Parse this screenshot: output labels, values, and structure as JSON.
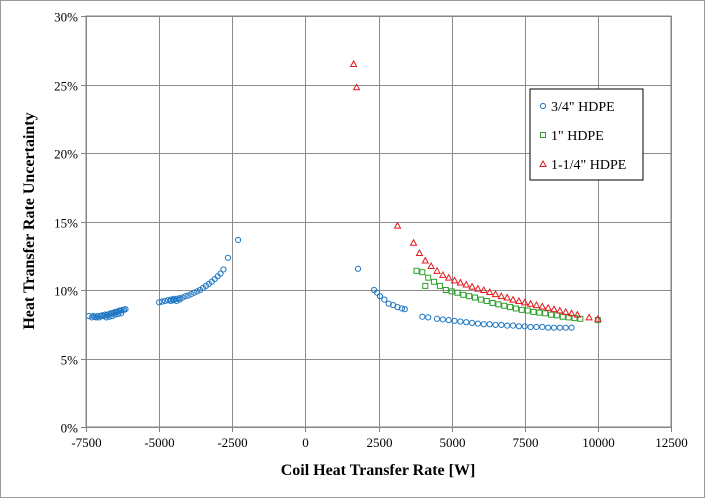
{
  "chart_data": {
    "type": "scatter",
    "title": "",
    "xlabel": "Coil Heat Transfer Rate [W]",
    "ylabel": "Heat Transfer Rate Uncertainty",
    "xlim": [
      -7500,
      12500
    ],
    "ylim": [
      0,
      30
    ],
    "x_ticks": [
      -7500,
      -5000,
      -2500,
      0,
      2500,
      5000,
      7500,
      10000,
      12500
    ],
    "x_tick_labels": [
      "-7500",
      "-5000",
      "-2500",
      "0",
      "2500",
      "5000",
      "7500",
      "10000",
      "12500"
    ],
    "y_ticks": [
      0,
      5,
      10,
      15,
      20,
      25,
      30
    ],
    "y_tick_labels": [
      "0%",
      "5%",
      "10%",
      "15%",
      "20%",
      "25%",
      "30%"
    ],
    "grid": true,
    "legend_position": "top-right",
    "series": [
      {
        "name": "3/4\" HDPE",
        "marker": "circle",
        "color": "#1f77c4",
        "points": [
          [
            -7400,
            8.1
          ],
          [
            -7300,
            8.0
          ],
          [
            -7250,
            8.1
          ],
          [
            -7200,
            8.05
          ],
          [
            -7150,
            8.0
          ],
          [
            -7100,
            8.1
          ],
          [
            -7050,
            8.0
          ],
          [
            -7000,
            8.1
          ],
          [
            -6950,
            8.15
          ],
          [
            -6900,
            8.1
          ],
          [
            -6850,
            8.2
          ],
          [
            -6800,
            8.15
          ],
          [
            -6750,
            8.2
          ],
          [
            -6700,
            8.25
          ],
          [
            -6650,
            8.3
          ],
          [
            -6600,
            8.3
          ],
          [
            -6550,
            8.35
          ],
          [
            -6500,
            8.4
          ],
          [
            -6450,
            8.4
          ],
          [
            -6400,
            8.45
          ],
          [
            -6350,
            8.5
          ],
          [
            -6300,
            8.5
          ],
          [
            -6250,
            8.55
          ],
          [
            -6200,
            8.55
          ],
          [
            -6150,
            8.6
          ],
          [
            -6800,
            8.0
          ],
          [
            -6700,
            8.05
          ],
          [
            -6600,
            8.1
          ],
          [
            -6500,
            8.2
          ],
          [
            -6400,
            8.25
          ],
          [
            -6300,
            8.3
          ],
          [
            -5000,
            9.1
          ],
          [
            -4900,
            9.15
          ],
          [
            -4800,
            9.2
          ],
          [
            -4700,
            9.25
          ],
          [
            -4600,
            9.3
          ],
          [
            -4500,
            9.35
          ],
          [
            -4400,
            9.35
          ],
          [
            -4300,
            9.4
          ],
          [
            -4200,
            9.45
          ],
          [
            -4100,
            9.55
          ],
          [
            -4000,
            9.6
          ],
          [
            -3900,
            9.7
          ],
          [
            -3800,
            9.8
          ],
          [
            -3700,
            9.9
          ],
          [
            -3600,
            10.0
          ],
          [
            -3500,
            10.15
          ],
          [
            -3400,
            10.3
          ],
          [
            -3300,
            10.45
          ],
          [
            -3200,
            10.6
          ],
          [
            -3100,
            10.8
          ],
          [
            -3000,
            11.0
          ],
          [
            -2900,
            11.2
          ],
          [
            -2800,
            11.5
          ],
          [
            -4600,
            9.2
          ],
          [
            -4500,
            9.25
          ],
          [
            -4400,
            9.2
          ],
          [
            -4300,
            9.3
          ],
          [
            -2650,
            12.35
          ],
          [
            -2300,
            13.65
          ],
          [
            1800,
            11.55
          ],
          [
            2350,
            10.0
          ],
          [
            2450,
            9.8
          ],
          [
            2550,
            9.55
          ],
          [
            2700,
            9.3
          ],
          [
            2850,
            9.0
          ],
          [
            3000,
            8.9
          ],
          [
            3150,
            8.75
          ],
          [
            3300,
            8.65
          ],
          [
            3400,
            8.6
          ],
          [
            4000,
            8.05
          ],
          [
            4200,
            8.0
          ],
          [
            4500,
            7.9
          ],
          [
            4700,
            7.85
          ],
          [
            4900,
            7.8
          ],
          [
            5100,
            7.75
          ],
          [
            5300,
            7.7
          ],
          [
            5500,
            7.65
          ],
          [
            5700,
            7.6
          ],
          [
            5900,
            7.55
          ],
          [
            6100,
            7.5
          ],
          [
            6300,
            7.5
          ],
          [
            6500,
            7.45
          ],
          [
            6700,
            7.45
          ],
          [
            6900,
            7.4
          ],
          [
            7100,
            7.4
          ],
          [
            7300,
            7.35
          ],
          [
            7500,
            7.35
          ],
          [
            7700,
            7.3
          ],
          [
            7900,
            7.3
          ],
          [
            8100,
            7.3
          ],
          [
            8300,
            7.25
          ],
          [
            8500,
            7.25
          ],
          [
            8700,
            7.25
          ],
          [
            8900,
            7.25
          ],
          [
            9100,
            7.25
          ]
        ]
      },
      {
        "name": "1\" HDPE",
        "marker": "square",
        "color": "#2ca02c",
        "points": [
          [
            3800,
            11.4
          ],
          [
            4000,
            11.3
          ],
          [
            4200,
            10.9
          ],
          [
            4100,
            10.3
          ],
          [
            4400,
            10.6
          ],
          [
            4600,
            10.3
          ],
          [
            4800,
            10.0
          ],
          [
            5000,
            9.9
          ],
          [
            5200,
            9.8
          ],
          [
            5400,
            9.65
          ],
          [
            5600,
            9.55
          ],
          [
            5800,
            9.45
          ],
          [
            6000,
            9.3
          ],
          [
            6200,
            9.2
          ],
          [
            6400,
            9.05
          ],
          [
            6600,
            8.95
          ],
          [
            6800,
            8.85
          ],
          [
            7000,
            8.75
          ],
          [
            7200,
            8.65
          ],
          [
            7400,
            8.55
          ],
          [
            7600,
            8.5
          ],
          [
            7800,
            8.4
          ],
          [
            8000,
            8.35
          ],
          [
            8200,
            8.3
          ],
          [
            8400,
            8.2
          ],
          [
            8600,
            8.15
          ],
          [
            8800,
            8.05
          ],
          [
            9000,
            8.0
          ],
          [
            9200,
            7.95
          ],
          [
            9400,
            7.9
          ],
          [
            10000,
            7.8
          ]
        ]
      },
      {
        "name": "1-1/4\" HDPE",
        "marker": "triangle",
        "color": "#e31a1c",
        "points": [
          [
            1650,
            26.5
          ],
          [
            1750,
            24.8
          ],
          [
            3150,
            14.7
          ],
          [
            3700,
            13.45
          ],
          [
            3900,
            12.7
          ],
          [
            4100,
            12.15
          ],
          [
            4300,
            11.75
          ],
          [
            4500,
            11.4
          ],
          [
            4700,
            11.1
          ],
          [
            4900,
            10.9
          ],
          [
            5100,
            10.7
          ],
          [
            5300,
            10.55
          ],
          [
            5500,
            10.4
          ],
          [
            5700,
            10.25
          ],
          [
            5900,
            10.1
          ],
          [
            6100,
            10.0
          ],
          [
            6300,
            9.85
          ],
          [
            6500,
            9.7
          ],
          [
            6700,
            9.55
          ],
          [
            6900,
            9.45
          ],
          [
            7100,
            9.3
          ],
          [
            7300,
            9.2
          ],
          [
            7500,
            9.1
          ],
          [
            7700,
            9.0
          ],
          [
            7900,
            8.9
          ],
          [
            8100,
            8.8
          ],
          [
            8300,
            8.7
          ],
          [
            8500,
            8.6
          ],
          [
            8700,
            8.5
          ],
          [
            8900,
            8.4
          ],
          [
            9100,
            8.3
          ],
          [
            9300,
            8.2
          ],
          [
            9700,
            8.0
          ],
          [
            10000,
            7.9
          ]
        ]
      }
    ]
  }
}
